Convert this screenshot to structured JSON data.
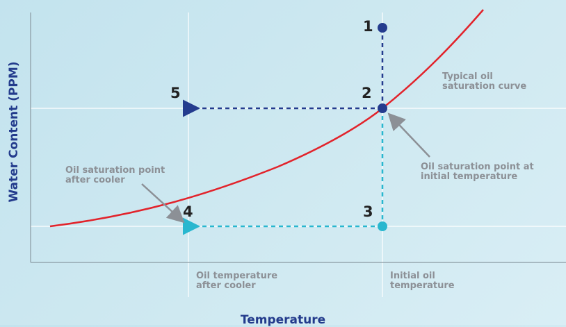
{
  "axes": {
    "x_label": "Temperature",
    "y_label": "Water Content (PPM)"
  },
  "annotations": {
    "curve_label": "Typical oil\nsaturation curve",
    "initial_saturation": "Oil saturation point at\ninitial temperature",
    "cooler_saturation": "Oil saturation point\nafter cooler",
    "cooler_temperature": "Oil temperature\nafter cooler",
    "initial_temperature": "Initial oil\ntemperature"
  },
  "points": {
    "p1": "1",
    "p2": "2",
    "p3": "3",
    "p4": "4",
    "p5": "5"
  },
  "colors": {
    "curve": "#e2232b",
    "dark_point": "#243c8e",
    "light_point": "#29b7cf",
    "grid": "#ffffff",
    "arrow_gray": "#8c9096"
  }
}
